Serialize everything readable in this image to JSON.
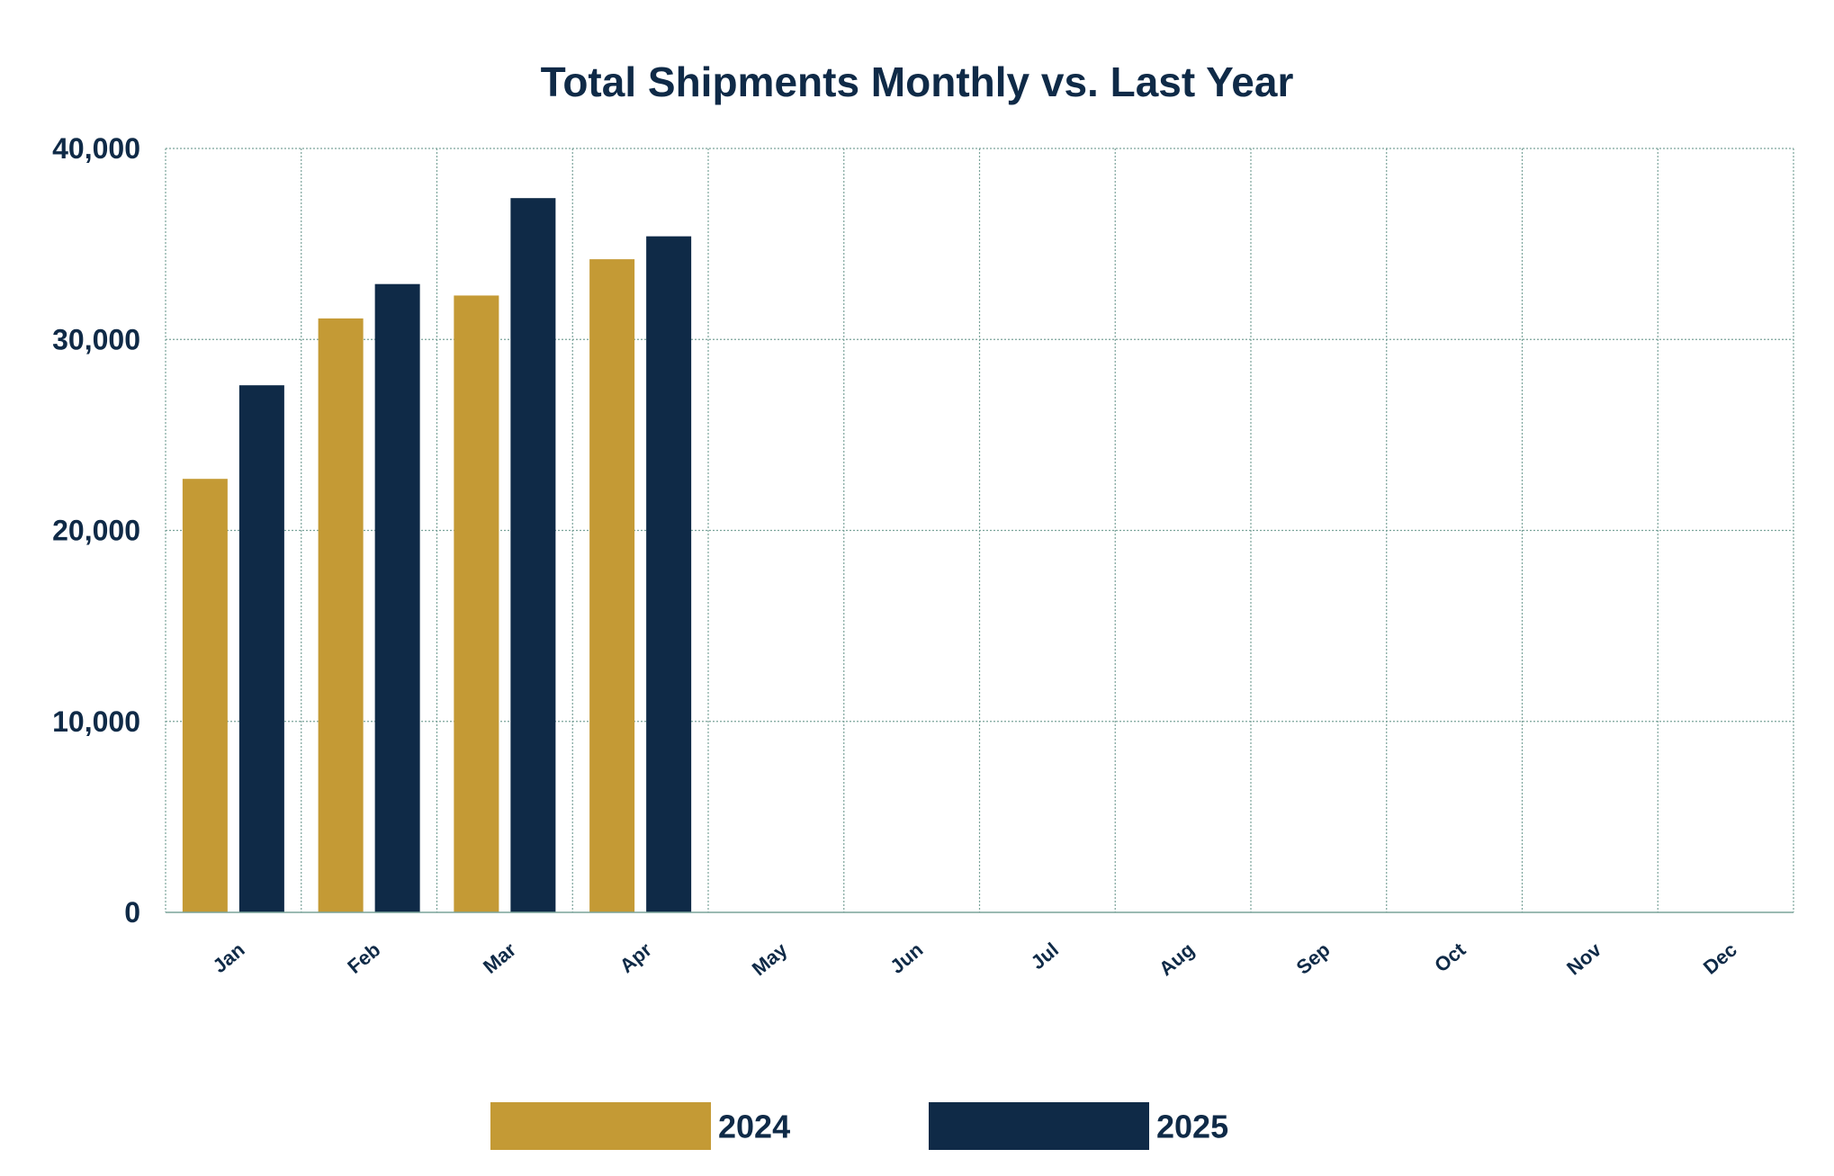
{
  "colors": {
    "series_2024": "#c49a35",
    "series_2025": "#0f2a47",
    "text": "#0f2a47",
    "grid": "#7aa39a",
    "axis": "#7aa39a"
  },
  "chart_data": {
    "type": "bar",
    "title": "Total Shipments Monthly vs. Last Year",
    "xlabel": "",
    "ylabel": "",
    "categories": [
      "Jan",
      "Feb",
      "Mar",
      "Apr",
      "May",
      "Jun",
      "Jul",
      "Aug",
      "Sep",
      "Oct",
      "Nov",
      "Dec"
    ],
    "series": [
      {
        "name": "2024",
        "color": "#c49a35",
        "values": [
          22700,
          31100,
          32300,
          34200,
          null,
          null,
          null,
          null,
          null,
          null,
          null,
          null
        ]
      },
      {
        "name": "2025",
        "color": "#0f2a47",
        "values": [
          27600,
          32900,
          37400,
          35400,
          null,
          null,
          null,
          null,
          null,
          null,
          null,
          null
        ]
      }
    ],
    "yticks": [
      0,
      10000,
      20000,
      30000,
      40000
    ],
    "ytick_labels": [
      "0",
      "10,000",
      "20,000",
      "30,000",
      "40,000"
    ],
    "ylim": [
      0,
      40000
    ],
    "grid": true,
    "legend_position": "bottom-center"
  }
}
